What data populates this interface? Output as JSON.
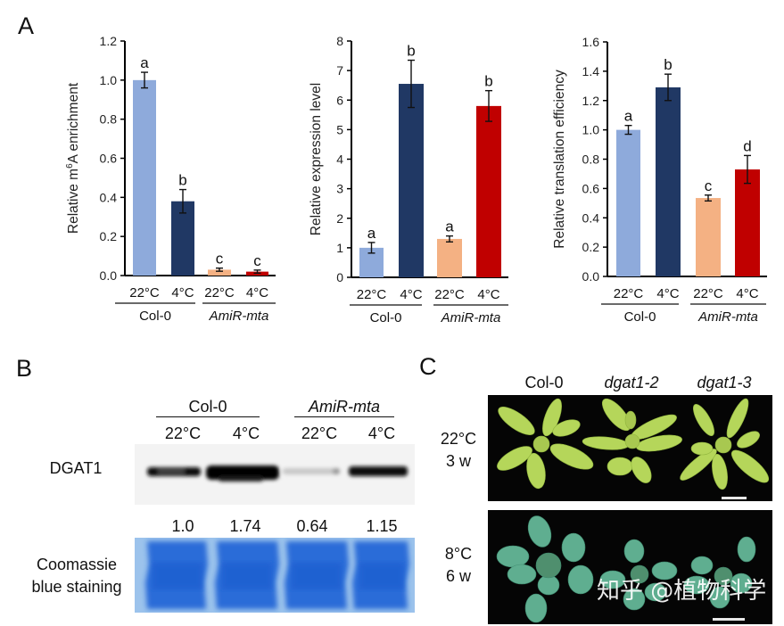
{
  "panels": {
    "A": {
      "label": "A"
    },
    "B": {
      "label": "B",
      "group_labels": [
        "Col-0",
        "AmiR-mta"
      ],
      "lane_labels": [
        "22°C",
        "4°C",
        "22°C",
        "4°C"
      ],
      "protein_label": "DGAT1",
      "quantification": [
        "1.0",
        "1.74",
        "0.64",
        "1.15"
      ],
      "loading_label_line1": "Coomassie",
      "loading_label_line2": "blue staining"
    },
    "C": {
      "label": "C",
      "genotypes": [
        "Col-0",
        "dgat1-2",
        "dgat1-3"
      ],
      "rows": [
        {
          "temp": "22°C",
          "time": "3 w"
        },
        {
          "temp": "8°C",
          "time": "6 w"
        }
      ],
      "watermark": "知乎 @植物科学"
    }
  },
  "colors": {
    "col0_22": "#8eaadb",
    "col0_4": "#203864",
    "amir_22": "#f4b183",
    "amir_4": "#c00000",
    "text": "#111111",
    "coomassie": "#2f6fd6",
    "photo_bg": "#050505"
  },
  "chart_data": [
    {
      "type": "bar",
      "title": "",
      "ylabel": "Relative m6A enrichment",
      "ylabel_base": "Relative m",
      "ylabel_sup": "6",
      "ylabel_rest": "A enrichment",
      "xlabel": "",
      "ylim": [
        0,
        1.2
      ],
      "yticks": [
        "0.0",
        "0.2",
        "0.4",
        "0.6",
        "0.8",
        "1.0",
        "1.2"
      ],
      "categories": [
        "22°C",
        "4°C",
        "22°C",
        "4°C"
      ],
      "groups": [
        "Col-0",
        "AmiR-mta"
      ],
      "values": [
        1.0,
        0.38,
        0.03,
        0.02
      ],
      "errors": [
        0.04,
        0.06,
        0.008,
        0.008
      ],
      "significance": [
        "a",
        "b",
        "c",
        "c"
      ],
      "grid": false
    },
    {
      "type": "bar",
      "title": "",
      "ylabel": "Relative expression level",
      "xlabel": "",
      "ylim": [
        0,
        8
      ],
      "yticks": [
        "0",
        "1",
        "2",
        "3",
        "4",
        "5",
        "6",
        "7",
        "8"
      ],
      "categories": [
        "22°C",
        "4°C",
        "22°C",
        "4°C"
      ],
      "groups": [
        "Col-0",
        "AmiR-mta"
      ],
      "values": [
        1.0,
        6.55,
        1.3,
        5.8
      ],
      "errors": [
        0.18,
        0.8,
        0.1,
        0.52
      ],
      "significance": [
        "a",
        "b",
        "a",
        "b"
      ],
      "grid": false
    },
    {
      "type": "bar",
      "title": "",
      "ylabel": "Relative translation efficiency",
      "xlabel": "",
      "ylim": [
        0,
        1.6
      ],
      "yticks": [
        "0.0",
        "0.2",
        "0.4",
        "0.6",
        "0.8",
        "1.0",
        "1.2",
        "1.4",
        "1.6"
      ],
      "categories": [
        "22°C",
        "4°C",
        "22°C",
        "4°C"
      ],
      "groups": [
        "Col-0",
        "AmiR-mta"
      ],
      "values": [
        1.0,
        1.29,
        0.535,
        0.73
      ],
      "errors": [
        0.03,
        0.09,
        0.02,
        0.095
      ],
      "significance": [
        "a",
        "b",
        "c",
        "d"
      ],
      "grid": false
    }
  ]
}
